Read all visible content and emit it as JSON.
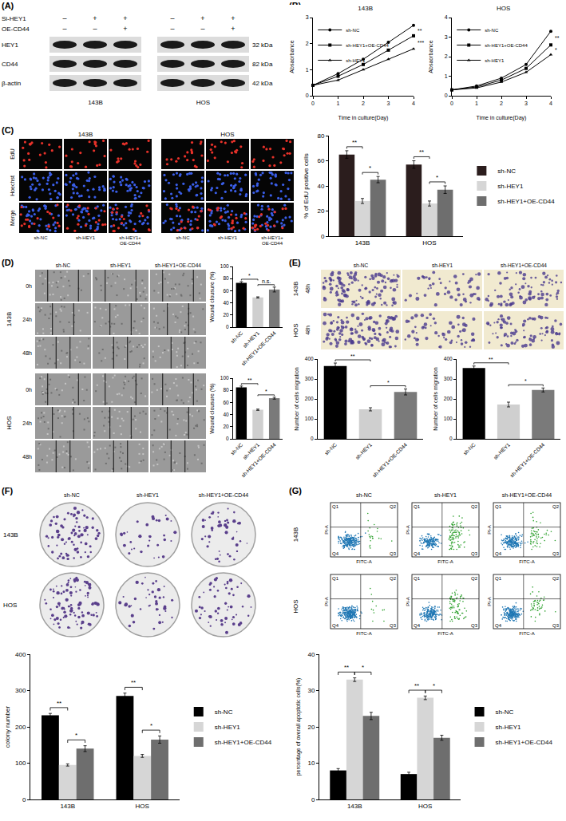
{
  "figure": {
    "panels": {
      "A": {
        "label": "(A)",
        "rows": [
          {
            "label": "Si-HEY1",
            "signs": [
              "–",
              "+",
              "+"
            ]
          },
          {
            "label": "OE-CD44",
            "signs": [
              "–",
              "–",
              "+"
            ]
          }
        ],
        "bands": [
          {
            "label": "HEY1",
            "size": "32 kDa"
          },
          {
            "label": "CD44",
            "size": "82 kDa"
          },
          {
            "label": "β-actin",
            "size": "42 kDa"
          }
        ],
        "cells": [
          "143B",
          "HOS"
        ]
      },
      "B": {
        "label": "(B)"
      },
      "C": {
        "label": "(C)",
        "cells": [
          "143B",
          "HOS"
        ],
        "rows": [
          "EdU",
          "Hoechst",
          "Merge"
        ],
        "groups": [
          "sh-NC",
          "sh-HEY1",
          "sh-HEY1+OE-CD44"
        ]
      },
      "D": {
        "label": "(D)",
        "cells": [
          "143B",
          "HOS"
        ],
        "rows": [
          "0h",
          "24h",
          "48h"
        ],
        "groups": [
          "sh-NC",
          "sh-HEY1",
          "sh-HEY1+OE-CD44"
        ]
      },
      "E": {
        "label": "(E)",
        "cells": [
          "143B",
          "HOS"
        ],
        "time": "48h",
        "groups": [
          "sh-NC",
          "sh-HEY1",
          "sh-HEY1+OE-CD44"
        ]
      },
      "F": {
        "label": "(F)",
        "cells": [
          "143B",
          "HOS"
        ],
        "groups": [
          "sh-NC",
          "sh-HEY1",
          "sh-HEY1+OE-CD44"
        ]
      },
      "G": {
        "label": "(G)",
        "cells": [
          "143B",
          "HOS"
        ],
        "groups": [
          "sh-NC",
          "sh-HEY1",
          "sh-HEY1+OE-CD44"
        ],
        "x_label": "FITC-A",
        "y_label": "PI-A",
        "quadrants": [
          "Q1",
          "Q2",
          "Q3",
          "Q4"
        ]
      }
    }
  },
  "chart_data": [
    {
      "type": "line",
      "title": "143B",
      "x": [
        0,
        1,
        2,
        3,
        4
      ],
      "xlim": [
        0,
        4
      ],
      "xticks": [
        0,
        1,
        2,
        3,
        4
      ],
      "ylim": [
        0,
        3
      ],
      "yticks": [
        0,
        1,
        2,
        3
      ],
      "x_label": "Time in culture(Day)",
      "y_label": "Absaorbance",
      "legend": "top-left",
      "series": [
        {
          "name": "sh-NC",
          "color": "#000000",
          "marker": "circle",
          "values": [
            0.4,
            0.85,
            1.4,
            2.05,
            2.7
          ]
        },
        {
          "name": "sh-HEY1+OE-CD44",
          "color": "#000000",
          "marker": "square",
          "values": [
            0.4,
            0.75,
            1.2,
            1.75,
            2.3
          ]
        },
        {
          "name": "sh-HEY1",
          "color": "#000000",
          "marker": "triangle",
          "values": [
            0.4,
            0.6,
            1.0,
            1.4,
            1.8
          ]
        }
      ],
      "annotations": [
        {
          "text": "**",
          "from": "sh-NC",
          "to": "sh-HEY1+OE-CD44"
        },
        {
          "text": "***",
          "from": "sh-HEY1+OE-CD44",
          "to": "sh-HEY1"
        }
      ]
    },
    {
      "type": "line",
      "title": "HOS",
      "x": [
        0,
        1,
        2,
        3,
        4
      ],
      "xlim": [
        0,
        4
      ],
      "xticks": [
        0,
        1,
        2,
        3,
        4
      ],
      "ylim": [
        0,
        4
      ],
      "yticks": [
        0,
        1,
        2,
        3,
        4
      ],
      "x_label": "Time in culture(Day)",
      "y_label": "Absaorbance",
      "legend": "top-left",
      "series": [
        {
          "name": "sh-NC",
          "color": "#000000",
          "marker": "circle",
          "values": [
            0.3,
            0.5,
            0.9,
            1.6,
            3.3
          ]
        },
        {
          "name": "sh-HEY1+OE-CD44",
          "color": "#000000",
          "marker": "square",
          "values": [
            0.3,
            0.45,
            0.8,
            1.4,
            2.6
          ]
        },
        {
          "name": "sh-HEY1",
          "color": "#000000",
          "marker": "triangle",
          "values": [
            0.3,
            0.4,
            0.7,
            1.2,
            2.1
          ]
        }
      ],
      "annotations": [
        {
          "text": "**",
          "from": "sh-NC",
          "to": "sh-HEY1+OE-CD44"
        },
        {
          "text": "*",
          "from": "sh-HEY1+OE-CD44",
          "to": "sh-HEY1"
        }
      ]
    },
    {
      "type": "bar",
      "categories": [
        "143B",
        "HOS"
      ],
      "ylim": [
        0,
        80
      ],
      "yticks": [
        0,
        20,
        40,
        60,
        80
      ],
      "y_label": "% of EdU positive cells",
      "legend": "right",
      "series": [
        {
          "name": "sh-NC",
          "color": "#2b1d1d",
          "values": [
            65,
            57
          ],
          "errors": [
            3,
            3
          ]
        },
        {
          "name": "sh-HEY1",
          "color": "#d6d6d6",
          "values": [
            28,
            26
          ],
          "errors": [
            2,
            2
          ]
        },
        {
          "name": "sh-HEY1+OE-CD44",
          "color": "#6e6e6e",
          "values": [
            45,
            37
          ],
          "errors": [
            2.5,
            3
          ]
        }
      ],
      "annotations": [
        {
          "text": "**",
          "category": "143B",
          "from": "sh-NC",
          "to": "sh-HEY1"
        },
        {
          "text": "*",
          "category": "143B",
          "from": "sh-HEY1",
          "to": "sh-HEY1+OE-CD44"
        },
        {
          "text": "**",
          "category": "HOS",
          "from": "sh-NC",
          "to": "sh-HEY1"
        },
        {
          "text": "*",
          "category": "HOS",
          "from": "sh-HEY1",
          "to": "sh-HEY1+OE-CD44"
        }
      ]
    },
    {
      "type": "bar",
      "categories": [
        "sh-NC",
        "sh-HEY1",
        "sh-HEY1+OE-CD44"
      ],
      "values": [
        73,
        49,
        62
      ],
      "errors": [
        2,
        1,
        4
      ],
      "colors": [
        "#000000",
        "#cfcfcf",
        "#7a7a7a"
      ],
      "ylim": [
        0,
        100
      ],
      "yticks": [
        0,
        20,
        40,
        60,
        80,
        100
      ],
      "y_label": "Wound clousure (%)",
      "annotations": [
        {
          "text": "*",
          "from": "sh-NC",
          "to": "sh-HEY1"
        },
        {
          "text": "n.s.",
          "from": "sh-HEY1",
          "to": "sh-HEY1+OE-CD44"
        }
      ]
    },
    {
      "type": "bar",
      "categories": [
        "sh-NC",
        "sh-HEY1",
        "sh-HEY1+OE-CD44"
      ],
      "values": [
        85,
        48,
        67
      ],
      "errors": [
        2,
        1,
        1.5
      ],
      "colors": [
        "#000000",
        "#cfcfcf",
        "#7a7a7a"
      ],
      "ylim": [
        0,
        100
      ],
      "yticks": [
        0,
        20,
        40,
        60,
        80,
        100
      ],
      "y_label": "Wound clousure (%)",
      "annotations": [
        {
          "text": "**",
          "from": "sh-NC",
          "to": "sh-HEY1"
        },
        {
          "text": "*",
          "from": "sh-HEY1",
          "to": "sh-HEY1+OE-CD44"
        }
      ]
    },
    {
      "type": "bar",
      "categories": [
        "sh-NC",
        "sh-HEY1",
        "sh-HEY1+OE-CD44"
      ],
      "values": [
        365,
        148,
        235
      ],
      "errors": [
        15,
        8,
        15
      ],
      "colors": [
        "#000000",
        "#cfcfcf",
        "#7a7a7a"
      ],
      "ylim": [
        0,
        400
      ],
      "yticks": [
        0,
        100,
        200,
        300,
        400
      ],
      "y_label": "Number of cells migration",
      "annotations": [
        {
          "text": "**",
          "from": "sh-NC",
          "to": "sh-HEY1"
        },
        {
          "text": "*",
          "from": "sh-HEY1",
          "to": "sh-HEY1+OE-CD44"
        }
      ]
    },
    {
      "type": "bar",
      "categories": [
        "sh-NC",
        "sh-HEY1",
        "sh-HEY1+OE-CD44"
      ],
      "values": [
        355,
        172,
        245
      ],
      "errors": [
        10,
        12,
        10
      ],
      "colors": [
        "#000000",
        "#cfcfcf",
        "#7a7a7a"
      ],
      "ylim": [
        0,
        400
      ],
      "yticks": [
        0,
        100,
        200,
        300,
        400
      ],
      "y_label": "Number of cells migration",
      "annotations": [
        {
          "text": "**",
          "from": "sh-NC",
          "to": "sh-HEY1"
        },
        {
          "text": "*",
          "from": "sh-HEY1",
          "to": "sh-HEY1+OE-CD44"
        }
      ]
    },
    {
      "type": "bar",
      "categories": [
        "143B",
        "HOS"
      ],
      "ylim": [
        0,
        400
      ],
      "yticks": [
        0,
        100,
        200,
        300,
        400
      ],
      "y_label": "colony number",
      "legend": "right",
      "series": [
        {
          "name": "sh-NC",
          "color": "#000000",
          "values": [
            232,
            285
          ],
          "errors": [
            5,
            8
          ]
        },
        {
          "name": "sh-HEY1",
          "color": "#d6d6d6",
          "values": [
            95,
            120
          ],
          "errors": [
            3,
            4
          ]
        },
        {
          "name": "sh-HEY1+OE-CD44",
          "color": "#6e6e6e",
          "values": [
            140,
            165
          ],
          "errors": [
            8,
            10
          ]
        }
      ],
      "annotations": [
        {
          "text": "**",
          "category": "143B",
          "from": "sh-NC",
          "to": "sh-HEY1"
        },
        {
          "text": "*",
          "category": "143B",
          "from": "sh-HEY1",
          "to": "sh-HEY1+OE-CD44"
        },
        {
          "text": "**",
          "category": "HOS",
          "from": "sh-NC",
          "to": "sh-HEY1"
        },
        {
          "text": "*",
          "category": "HOS",
          "from": "sh-HEY1",
          "to": "sh-HEY1+OE-CD44"
        }
      ]
    },
    {
      "type": "bar",
      "categories": [
        "143B",
        "HOS"
      ],
      "ylim": [
        0,
        40
      ],
      "yticks": [
        0,
        10,
        20,
        30,
        40
      ],
      "y_label": "percentage of overall apoptotic cells(%)",
      "legend": "right",
      "series": [
        {
          "name": "sh-NC",
          "color": "#000000",
          "values": [
            8,
            7
          ],
          "errors": [
            0.5,
            0.5
          ]
        },
        {
          "name": "sh-HEY1",
          "color": "#d6d6d6",
          "values": [
            33,
            28
          ],
          "errors": [
            0.5,
            0.5
          ]
        },
        {
          "name": "sh-HEY1+OE-CD44",
          "color": "#6e6e6e",
          "values": [
            23,
            17
          ],
          "errors": [
            1,
            0.7
          ]
        }
      ],
      "annotations": [
        {
          "text": "**",
          "category": "143B",
          "from": "sh-NC",
          "to": "sh-HEY1"
        },
        {
          "text": "*",
          "category": "143B",
          "from": "sh-HEY1",
          "to": "sh-HEY1+OE-CD44"
        },
        {
          "text": "**",
          "category": "HOS",
          "from": "sh-NC",
          "to": "sh-HEY1"
        },
        {
          "text": "*",
          "category": "HOS",
          "from": "sh-HEY1",
          "to": "sh-HEY1+OE-CD44"
        }
      ]
    }
  ]
}
